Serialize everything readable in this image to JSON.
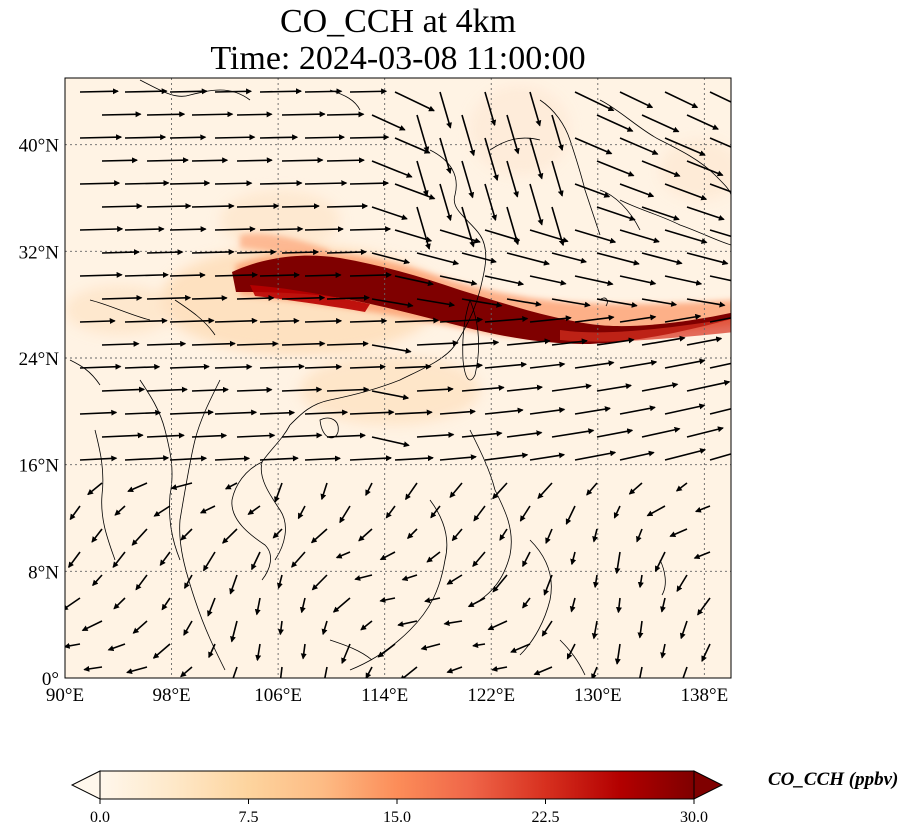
{
  "title": {
    "line1": "CO_CCH at 4km",
    "line2": "Time: 2024-03-08 11:00:00"
  },
  "map": {
    "lon_range": [
      90,
      140
    ],
    "lat_range": [
      0,
      45
    ],
    "lon_ticks": [
      "90°E",
      "98°E",
      "106°E",
      "114°E",
      "122°E",
      "130°E",
      "138°E"
    ],
    "lat_ticks": [
      "0°",
      "8°N",
      "16°N",
      "24°N",
      "32°N",
      "40°N"
    ],
    "gridlines": true,
    "field": "CO_CCH",
    "plume_axis": [
      [
        108,
        30
      ],
      [
        114,
        29
      ],
      [
        120,
        27.5
      ],
      [
        126,
        26
      ],
      [
        132,
        26
      ],
      [
        140,
        27
      ]
    ],
    "wind_vectors": "quiver field, predominantly westerly/north-westerly north of 16°N"
  },
  "colorbar": {
    "label": "CO_CCH (ppbv)",
    "ticks": [
      "0.0",
      "7.5",
      "15.0",
      "22.5",
      "30.0"
    ],
    "range": [
      0,
      30
    ],
    "extend": "both",
    "colormap": [
      "#fff7ec",
      "#fee8c8",
      "#fdd49e",
      "#fdbb84",
      "#fc8d59",
      "#ef6548",
      "#d7301f",
      "#b30000",
      "#7f0000"
    ]
  }
}
